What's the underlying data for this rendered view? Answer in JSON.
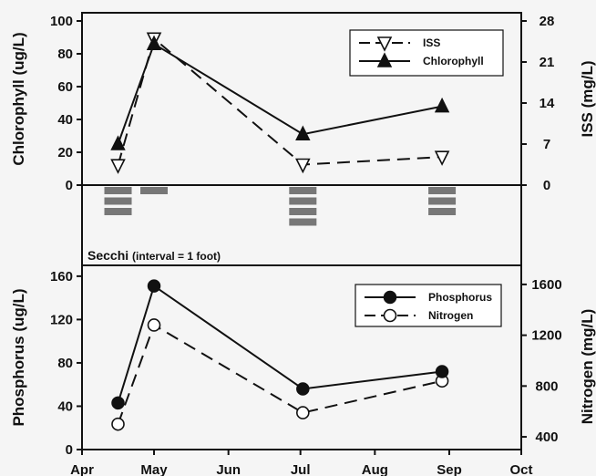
{
  "chart_data": [
    {
      "type": "line",
      "panel": "top",
      "ylabel_left": "Chlorophyll (ug/L)",
      "ylabel_right": "ISS (mg/L)",
      "ylim_left": [
        0,
        105
      ],
      "yticks_left": [
        "0",
        "20",
        "40",
        "60",
        "80",
        "100"
      ],
      "ylim_right": [
        0,
        29.4
      ],
      "yticks_right": [
        "0",
        "7",
        "14",
        "21",
        "28"
      ],
      "grid": false,
      "legend_position": "top-right",
      "series": [
        {
          "name": "ISS",
          "axis": "right",
          "marker": "open-triangle-down",
          "line": "dashed",
          "x": [
            "2003-04-16",
            "2003-05-01",
            "2003-07-02",
            "2003-08-29"
          ],
          "values": [
            3.4,
            25.0,
            3.5,
            4.8
          ]
        },
        {
          "name": "Chlorophyll",
          "axis": "left",
          "marker": "filled-triangle-up",
          "line": "solid",
          "x": [
            "2003-04-16",
            "2003-05-01",
            "2003-07-02",
            "2003-08-29"
          ],
          "values": [
            25,
            86,
            31,
            48
          ]
        }
      ]
    },
    {
      "type": "bar",
      "panel": "middle",
      "label_main": "Secchi",
      "label_note": "(interval = 1 foot)",
      "x": [
        "2003-04-16",
        "2003-05-01",
        "2003-07-02",
        "2003-08-29"
      ],
      "values_feet": [
        3,
        1,
        4,
        3
      ],
      "color": "#777777"
    },
    {
      "type": "line",
      "panel": "bottom",
      "ylabel_left": "Phosphorus (ug/L)",
      "ylabel_right": "Nitrogen (mg/L)",
      "ylim_left": [
        0,
        170
      ],
      "yticks_left": [
        "0",
        "40",
        "80",
        "120",
        "160"
      ],
      "ylim_right": [
        300,
        1750
      ],
      "yticks_right": [
        "400",
        "800",
        "1200",
        "1600"
      ],
      "grid": false,
      "legend_position": "top-right",
      "series": [
        {
          "name": "Phosphorus",
          "axis": "left",
          "marker": "filled-circle",
          "line": "solid",
          "x": [
            "2003-04-16",
            "2003-05-01",
            "2003-07-02",
            "2003-08-29"
          ],
          "values": [
            43,
            151,
            56,
            72
          ]
        },
        {
          "name": "Nitrogen",
          "axis": "right",
          "marker": "open-circle",
          "line": "dashed",
          "x": [
            "2003-04-16",
            "2003-05-01",
            "2003-07-02",
            "2003-08-29"
          ],
          "values": [
            500,
            1280,
            590,
            840
          ]
        }
      ]
    }
  ],
  "x_axis": {
    "range": [
      "2003-04-01",
      "2003-10-01"
    ],
    "ticks": [
      {
        "label": "Apr",
        "date": "2003-04-01"
      },
      {
        "label": "May",
        "date": "2003-05-01"
      },
      {
        "label": "Jun",
        "date": "2003-06-01"
      },
      {
        "label": "Jul",
        "date": "2003-07-01"
      },
      {
        "label": "Aug",
        "date": "2003-08-01"
      },
      {
        "label": "Sep",
        "date": "2003-09-01"
      },
      {
        "label": "Oct",
        "date": "2003-10-01"
      }
    ]
  }
}
